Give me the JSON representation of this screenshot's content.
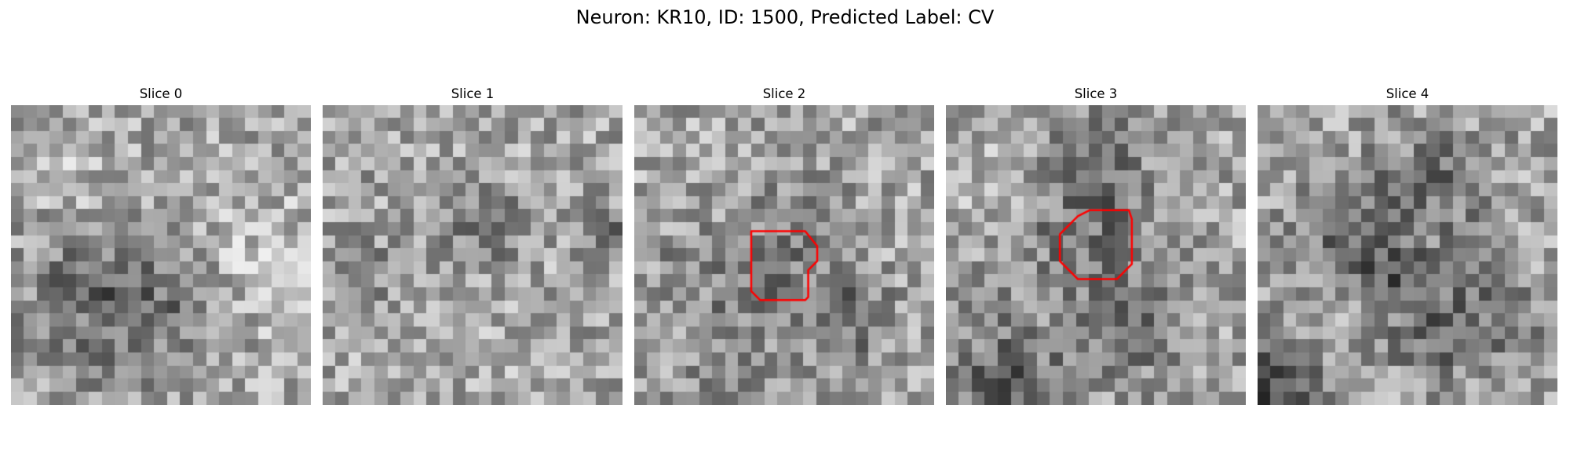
{
  "figure": {
    "title": "Neuron: KR10, ID: 1500, Predicted Label: CV"
  },
  "panels": [
    {
      "title": "Slice 0",
      "contour": false,
      "seed": 11,
      "blobs": [
        [
          0.3,
          0.62,
          0.18,
          -55
        ],
        [
          0.55,
          0.7,
          0.14,
          -35
        ],
        [
          0.2,
          0.25,
          0.12,
          25
        ],
        [
          0.85,
          0.55,
          0.18,
          30
        ]
      ]
    },
    {
      "title": "Slice 1",
      "contour": false,
      "seed": 23,
      "blobs": [
        [
          0.55,
          0.42,
          0.08,
          -60
        ],
        [
          0.15,
          0.55,
          0.12,
          -20
        ],
        [
          0.95,
          0.42,
          0.06,
          -45
        ],
        [
          0.4,
          0.75,
          0.15,
          15
        ]
      ]
    },
    {
      "title": "Slice 2",
      "contour": true,
      "seed": 37,
      "blobs": [
        [
          0.55,
          0.38,
          0.1,
          -40
        ],
        [
          0.72,
          0.7,
          0.1,
          -60
        ],
        [
          0.45,
          0.62,
          0.1,
          -45
        ],
        [
          0.2,
          0.55,
          0.12,
          -25
        ],
        [
          0.3,
          0.85,
          0.12,
          -25
        ]
      ]
    },
    {
      "title": "Slice 3",
      "contour": true,
      "seed": 53,
      "blobs": [
        [
          0.45,
          0.45,
          0.18,
          -45
        ],
        [
          0.65,
          0.75,
          0.12,
          -50
        ],
        [
          0.2,
          0.95,
          0.15,
          -70
        ],
        [
          0.5,
          0.2,
          0.12,
          -40
        ],
        [
          0.2,
          0.3,
          0.12,
          20
        ]
      ]
    },
    {
      "title": "Slice 4",
      "contour": false,
      "seed": 71,
      "blobs": [
        [
          0.3,
          0.4,
          0.12,
          -60
        ],
        [
          0.6,
          0.25,
          0.12,
          -55
        ],
        [
          0.6,
          0.72,
          0.14,
          -60
        ],
        [
          0.05,
          0.95,
          0.12,
          -80
        ],
        [
          0.85,
          0.75,
          0.12,
          -30
        ],
        [
          0.45,
          0.55,
          0.08,
          -50
        ]
      ]
    }
  ],
  "contour_color": "#ff0000"
}
